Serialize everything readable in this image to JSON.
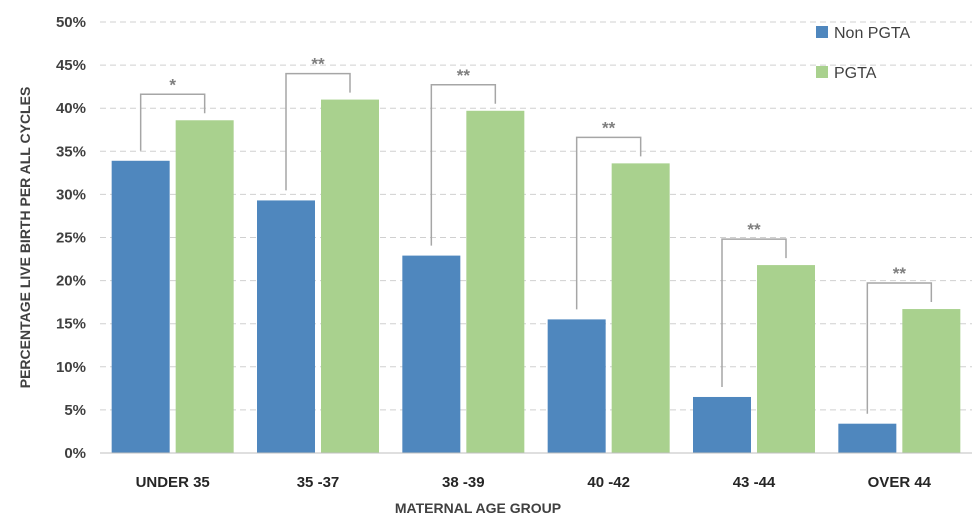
{
  "chart_data": {
    "type": "bar",
    "xlabel": "MATERNAL AGE GROUP",
    "ylabel": "PERCENTAGE LIVE BIRTH PER ALL CYCLES",
    "ylim": [
      0,
      50
    ],
    "yticks": [
      "0%",
      "5%",
      "10%",
      "15%",
      "20%",
      "25%",
      "30%",
      "35%",
      "40%",
      "45%",
      "50%"
    ],
    "grid": true,
    "legend_position": "top-right",
    "categories": [
      "UNDER 35",
      "35 -37",
      "38 -39",
      "40 -42",
      "43 -44",
      "OVER 44"
    ],
    "series": [
      {
        "name": "Non PGTA",
        "color": "#4F87BE",
        "values": [
          33.9,
          29.3,
          22.9,
          15.5,
          6.5,
          3.4
        ]
      },
      {
        "name": "PGTA",
        "color": "#A9D18E",
        "values": [
          38.6,
          41.0,
          39.7,
          33.6,
          21.8,
          16.7
        ]
      }
    ],
    "significance": [
      "*",
      "**",
      "**",
      "**",
      "**",
      "**"
    ]
  }
}
